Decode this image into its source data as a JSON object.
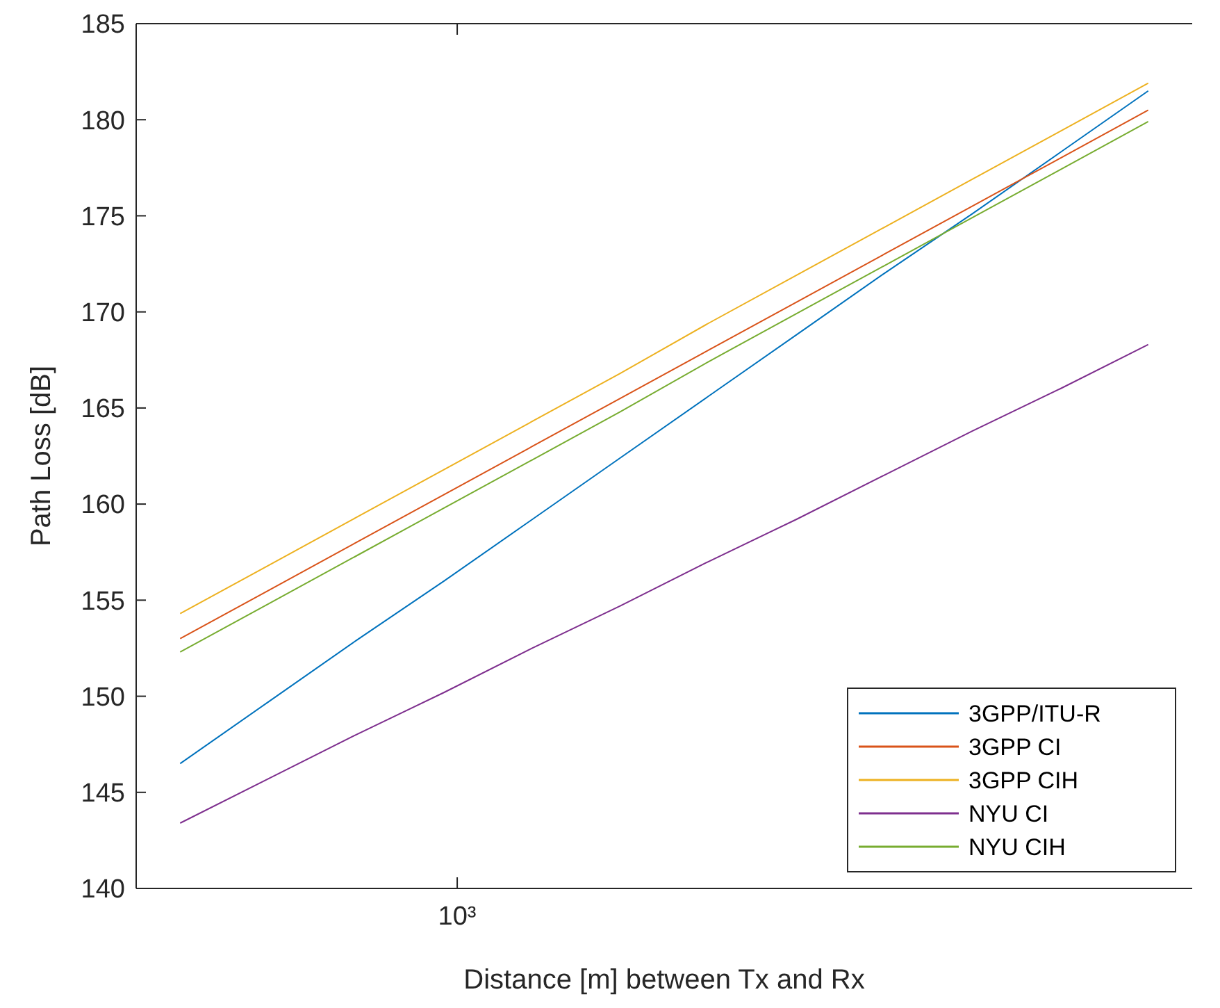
{
  "chart_data": {
    "type": "line",
    "xlabel": "Distance [m] between Tx and Rx",
    "ylabel": "Path Loss [dB]",
    "categories": [
      null,
      null,
      null,
      null,
      null,
      null,
      null,
      null,
      null,
      null,
      null,
      null
    ],
    "annotations": [
      "10³"
    ],
    "ylim": [
      140,
      185
    ],
    "yticks": [
      140,
      145,
      150,
      155,
      160,
      165,
      170,
      175,
      180,
      185
    ],
    "grid": false,
    "legend": "bottom right",
    "marker": "none",
    "line_style": "solid",
    "series": [
      {
        "name": "3GPP/ITU-R",
        "color": "#0072bd",
        "values": [
          146.5,
          149.7,
          152.9,
          156.0,
          159.2,
          162.4,
          165.6,
          168.8,
          172.0,
          175.1,
          178.3,
          181.5
        ]
      },
      {
        "name": "3GPP CI",
        "color": "#d95319",
        "values": [
          153.0,
          155.5,
          158.0,
          160.5,
          163.0,
          165.5,
          168.0,
          170.5,
          173.0,
          175.5,
          178.0,
          180.5
        ]
      },
      {
        "name": "3GPP CIH",
        "color": "#edb120",
        "values": [
          154.3,
          156.8,
          159.3,
          161.8,
          164.3,
          166.8,
          169.4,
          171.9,
          174.4,
          176.9,
          179.4,
          181.9
        ]
      },
      {
        "name": "NYU CI",
        "color": "#7e2f8e",
        "values": [
          143.4,
          145.7,
          148.0,
          150.2,
          152.5,
          154.7,
          157.0,
          159.2,
          161.5,
          163.8,
          166.0,
          168.3
        ]
      },
      {
        "name": "NYU CIH",
        "color": "#77ac30",
        "values": [
          152.3,
          154.8,
          157.3,
          159.8,
          162.3,
          164.8,
          167.4,
          169.9,
          172.4,
          174.9,
          177.4,
          179.9
        ]
      }
    ]
  }
}
